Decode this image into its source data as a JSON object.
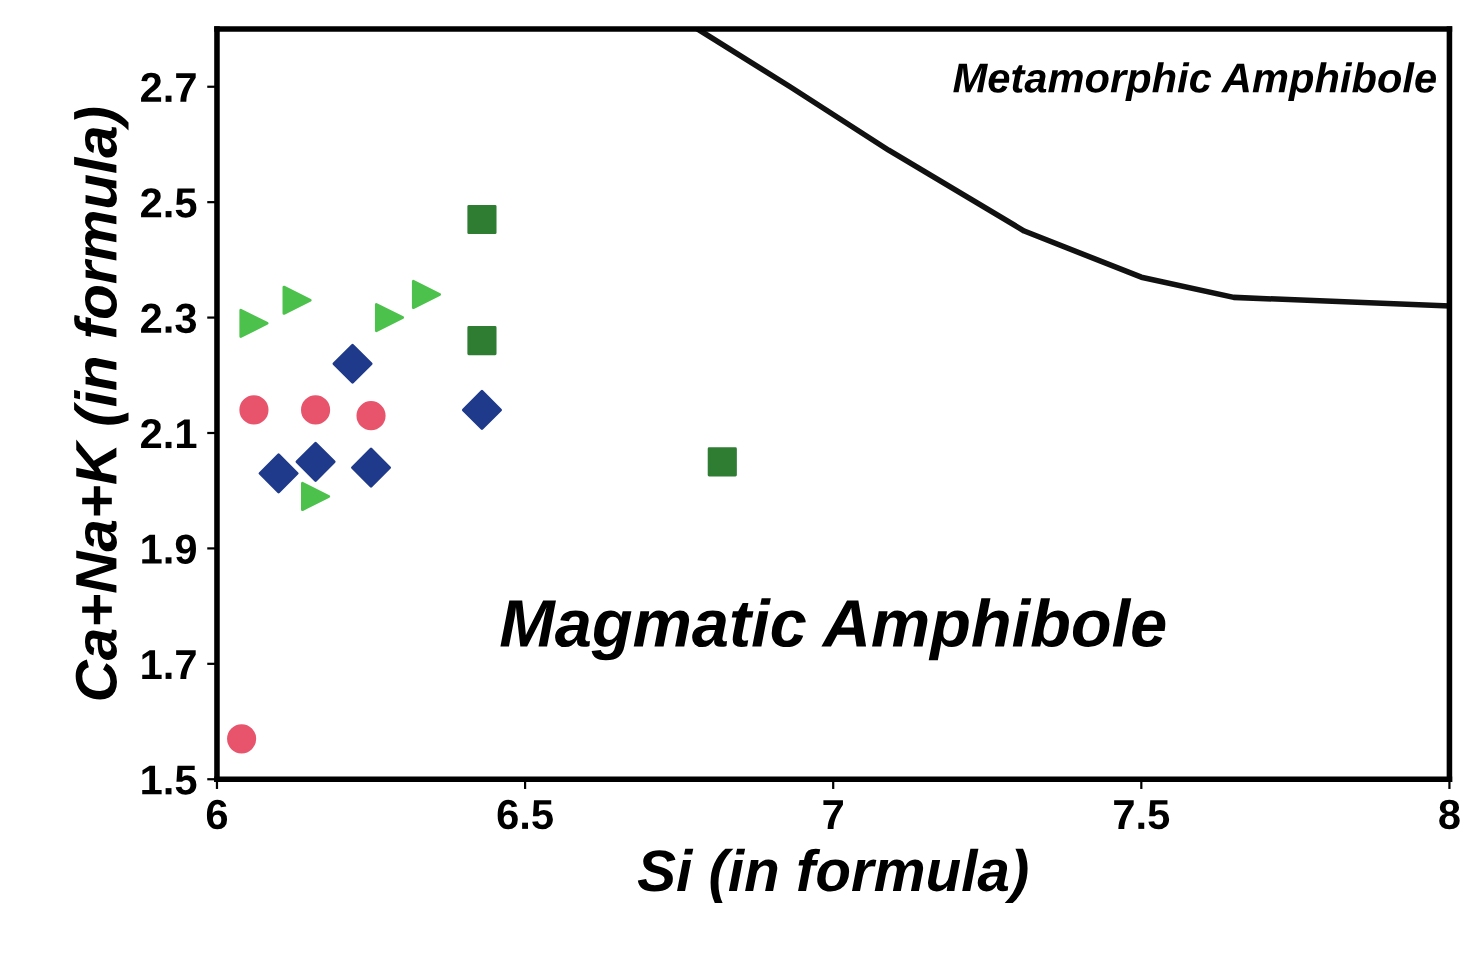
{
  "chart_data": {
    "type": "scatter",
    "xlabel": "Si (in formula)",
    "ylabel": "Ca+Na+K (in formula)",
    "xlim": [
      6,
      8
    ],
    "ylim": [
      1.5,
      2.8
    ],
    "xticks": [
      6,
      6.5,
      7,
      7.5,
      8
    ],
    "yticks": [
      1.5,
      1.7,
      1.9,
      2.1,
      2.3,
      2.5,
      2.7
    ],
    "grid": false,
    "legend": false,
    "annotations": [
      "Metamorphic Amphibole",
      "Magmatic Amphibole"
    ],
    "series": [
      {
        "color": "#e8546b",
        "marker": "circle",
        "x": [
          6.06,
          6.16,
          6.25,
          6.04
        ],
        "values": [
          2.14,
          2.14,
          2.13,
          1.57
        ]
      },
      {
        "color": "#1f3a8a",
        "marker": "diamond",
        "x": [
          6.1,
          6.16,
          6.25,
          6.22,
          6.43
        ],
        "values": [
          2.03,
          2.05,
          2.04,
          2.22,
          2.14
        ]
      },
      {
        "color": "#4cc24c",
        "marker": "triangle",
        "x": [
          6.06,
          6.13,
          6.28,
          6.34,
          6.16
        ],
        "values": [
          2.29,
          2.33,
          2.3,
          2.34,
          1.99
        ]
      },
      {
        "color": "#2e7d32",
        "marker": "square",
        "x": [
          6.43,
          6.43,
          6.82
        ],
        "values": [
          2.47,
          2.26,
          2.05
        ]
      },
      {
        "type": "line",
        "color": "#111111",
        "marker": "none",
        "x": [
          6.78,
          6.93,
          7.09,
          7.31,
          7.5,
          7.65,
          8.0
        ],
        "values": [
          2.8,
          2.7,
          2.59,
          2.45,
          2.37,
          2.335,
          2.32
        ]
      }
    ]
  }
}
